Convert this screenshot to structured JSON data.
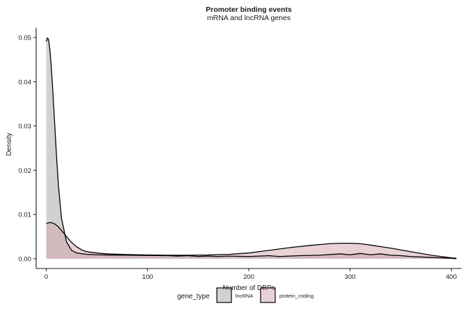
{
  "chart_data": {
    "type": "area",
    "title": "Promoter binding events",
    "subtitle": "mRNA and lncRNA genes",
    "xlabel": "Number of DBPs",
    "ylabel": "Density",
    "xlim": [
      -10,
      410
    ],
    "ylim": [
      -0.0022,
      0.0522
    ],
    "x_ticks": [
      0,
      100,
      200,
      300,
      400
    ],
    "y_ticks": [
      0.0,
      0.01,
      0.02,
      0.03,
      0.04,
      0.05
    ],
    "x_tick_labels": [
      "0",
      "100",
      "200",
      "300",
      "400"
    ],
    "y_tick_labels": [
      "0.00",
      "0.01",
      "0.02",
      "0.03",
      "0.04",
      "0.05"
    ],
    "grid": false,
    "legend": {
      "title": "gene_type",
      "position": "bottom",
      "entries": [
        "lncRNA",
        "protein_coding"
      ]
    },
    "series": [
      {
        "name": "lncRNA",
        "fill": "#b3b3b3",
        "fill_opacity": 0.6,
        "stroke": "#000000",
        "x": [
          0,
          1,
          2,
          3,
          4,
          5,
          6,
          8,
          10,
          12,
          15,
          20,
          25,
          30,
          40,
          50,
          60,
          80,
          100,
          120,
          130,
          140,
          150,
          160,
          170,
          180,
          200,
          220,
          230,
          250,
          270,
          290,
          300,
          310,
          320,
          330,
          340,
          350,
          360,
          380,
          400,
          405
        ],
        "y": [
          0.0491,
          0.0499,
          0.0497,
          0.0484,
          0.0462,
          0.0432,
          0.0397,
          0.0318,
          0.0237,
          0.0165,
          0.0092,
          0.0038,
          0.0019,
          0.0013,
          0.001,
          0.0009,
          0.00085,
          0.0008,
          0.00075,
          0.0007,
          0.0006,
          0.0007,
          0.0005,
          0.0006,
          0.0005,
          0.0006,
          0.0005,
          0.0007,
          0.0005,
          0.0007,
          0.0008,
          0.0011,
          0.0009,
          0.0012,
          0.0009,
          0.0011,
          0.0008,
          0.0007,
          0.0005,
          0.0003,
          0.0001,
          0.0
        ]
      },
      {
        "name": "protein_coding",
        "fill": "#d4a6ad",
        "fill_opacity": 0.5,
        "stroke": "#000000",
        "x": [
          0,
          2,
          4,
          6,
          8,
          10,
          12,
          15,
          18,
          20,
          25,
          30,
          35,
          40,
          50,
          60,
          80,
          100,
          120,
          140,
          160,
          180,
          200,
          220,
          240,
          260,
          280,
          290,
          300,
          310,
          320,
          340,
          360,
          380,
          400,
          405
        ],
        "y": [
          0.0079,
          0.0081,
          0.0082,
          0.0081,
          0.0079,
          0.0076,
          0.0072,
          0.0064,
          0.0056,
          0.005,
          0.0037,
          0.0027,
          0.002,
          0.0016,
          0.0013,
          0.0011,
          0.00095,
          0.00085,
          0.0008,
          0.0008,
          0.00085,
          0.001,
          0.0013,
          0.0019,
          0.0025,
          0.003,
          0.0034,
          0.0035,
          0.0035,
          0.0034,
          0.0031,
          0.0024,
          0.0016,
          0.0008,
          0.0002,
          0.0001
        ]
      }
    ]
  }
}
